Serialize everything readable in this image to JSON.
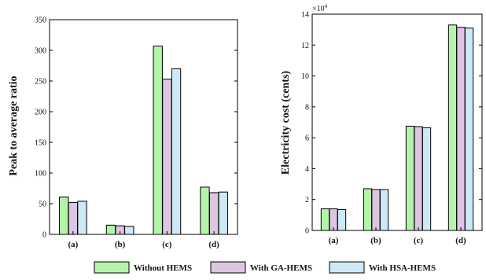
{
  "chart_data": [
    {
      "type": "bar",
      "categories": [
        "(a)",
        "(b)",
        "(c)",
        "(d)"
      ],
      "series": [
        {
          "name": "Without HEMS",
          "values": [
            61,
            15,
            307,
            77
          ]
        },
        {
          "name": "With GA-HEMS",
          "values": [
            52,
            14,
            253,
            68
          ]
        },
        {
          "name": "With HSA-HEMS",
          "values": [
            54,
            13,
            270,
            69
          ]
        }
      ],
      "xlabel": "",
      "ylabel": "Peak to average ratio",
      "ylim": [
        0,
        350
      ],
      "yticks": [
        0,
        50,
        100,
        150,
        200,
        250,
        300,
        350
      ],
      "grid": false
    },
    {
      "type": "bar",
      "categories": [
        "(a)",
        "(b)",
        "(c)",
        "(d)"
      ],
      "series": [
        {
          "name": "Without HEMS",
          "values": [
            1.4,
            2.7,
            6.75,
            13.3
          ]
        },
        {
          "name": "With GA-HEMS",
          "values": [
            1.4,
            2.65,
            6.72,
            13.15
          ]
        },
        {
          "name": "With HSA-HEMS",
          "values": [
            1.35,
            2.65,
            6.65,
            13.1
          ]
        }
      ],
      "xlabel": "",
      "ylabel": "Electricity cost (cents)",
      "ylim": [
        0,
        14
      ],
      "yticks": [
        0,
        2,
        4,
        6,
        8,
        10,
        12,
        14
      ],
      "multiplier": {
        "base": "×10",
        "exponent": "4"
      },
      "grid": false
    }
  ],
  "legend": {
    "placement": "bottom",
    "entries": [
      "Without HEMS",
      "With GA-HEMS",
      "With HSA-HEMS"
    ]
  },
  "colors": {
    "Without HEMS": "#b3f5a8",
    "With GA-HEMS": "#dcc6e0",
    "With HSA-HEMS": "#cde9f6",
    "stroke": "#000000"
  }
}
